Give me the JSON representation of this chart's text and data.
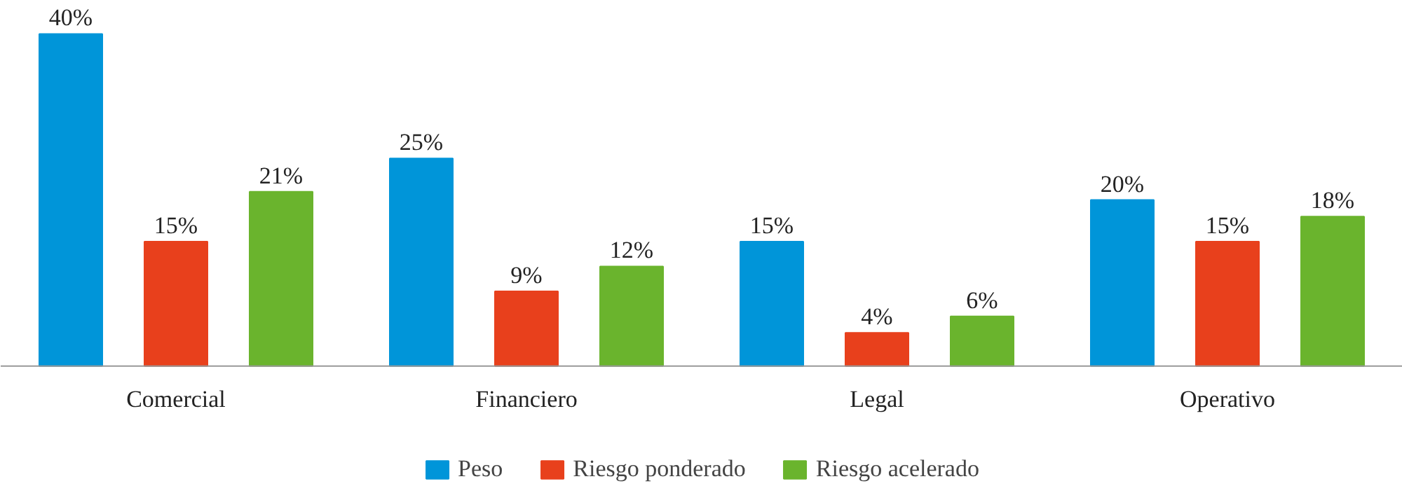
{
  "chart_data": {
    "type": "bar",
    "categories": [
      "Comercial",
      "Financiero",
      "Legal",
      "Operativo"
    ],
    "series": [
      {
        "name": "Peso",
        "color": "#0095d9",
        "values": [
          40,
          25,
          15,
          20
        ],
        "value_labels": [
          "40%",
          "25%",
          "15%",
          "20%"
        ]
      },
      {
        "name": "Riesgo ponderado",
        "color": "#e8401c",
        "values": [
          15,
          9,
          4,
          15
        ],
        "value_labels": [
          "15%",
          "9%",
          "4%",
          "15%"
        ]
      },
      {
        "name": "Riesgo acelerado",
        "color": "#6ab42d",
        "values": [
          21,
          12,
          6,
          18
        ],
        "value_labels": [
          "21%",
          "12%",
          "6%",
          "18%"
        ]
      }
    ],
    "legend": "bottom"
  }
}
